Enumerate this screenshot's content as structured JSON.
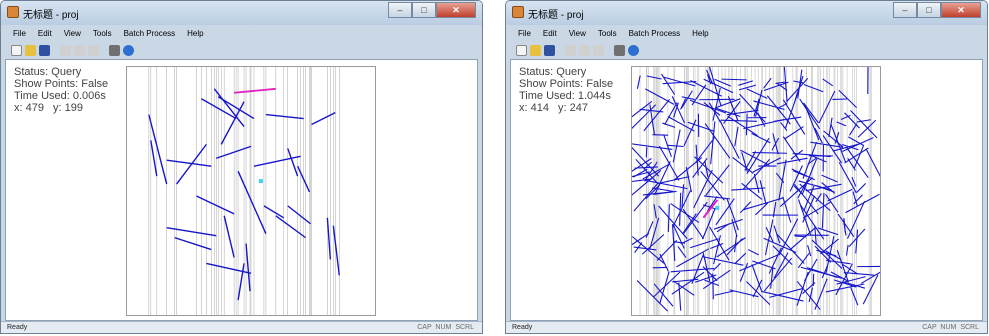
{
  "windows": [
    {
      "title": "无标题 - proj",
      "menu": [
        "File",
        "Edit",
        "View",
        "Tools",
        "Batch Process",
        "Help"
      ],
      "status": "Status: Query",
      "show_points": "Show Points: False",
      "time_used": "Time Used: 0.006s",
      "x": "x: 479",
      "y": "y: 199",
      "ready": "Ready",
      "indicators": "CAP NUM SCRL"
    },
    {
      "title": "无标题 - proj",
      "menu": [
        "File",
        "Edit",
        "View",
        "Tools",
        "Batch Process",
        "Help"
      ],
      "status": "Status: Query",
      "show_points": "Show Points: False",
      "time_used": "Time Used: 1.044s",
      "x": "x: 414",
      "y": "y: 247",
      "ready": "Ready",
      "indicators": "CAP NUM SCRL"
    }
  ],
  "colors": {
    "segment": "#1515cc",
    "highlight": "#e020c0",
    "query_point": "#40d0f0",
    "slab_line": "#b8b8b8"
  },
  "icons": [
    "new-icon",
    "open-icon",
    "save-icon",
    "cut-icon",
    "copy-icon",
    "paste-icon",
    "print-icon",
    "help-icon"
  ]
}
